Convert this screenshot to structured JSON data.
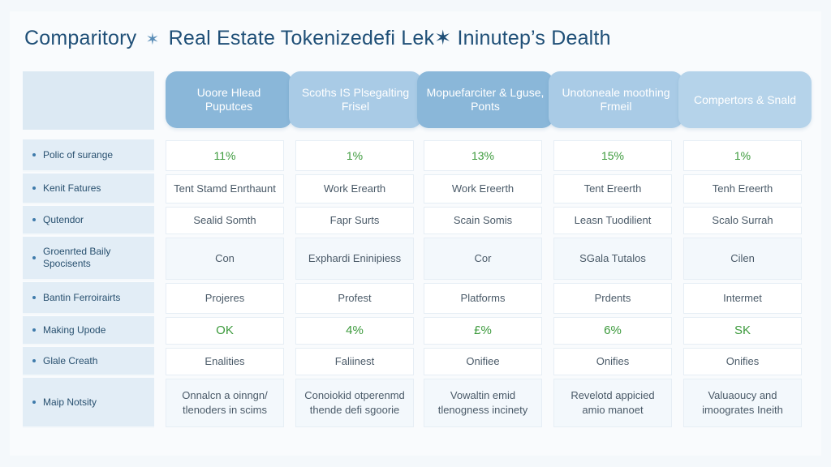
{
  "title": {
    "part1": "Comparitory",
    "star": "✶",
    "part2": "Real Estate Tokenizedefi Lek✶ Ininutep’s Dealth"
  },
  "columns": [
    "Uoore Hlead Puputces",
    "Scoths IS Plsegalting Frisel",
    "Mopuefarciter & Lguse, Ponts",
    "Unotoneale moothing Frmeil",
    "Compertors & Snald"
  ],
  "rows": [
    {
      "label": "Polic of surange",
      "cells": [
        "11%",
        "1%",
        "13%",
        "15%",
        "1%"
      ]
    },
    {
      "label": "Kenit Fatures",
      "cells": [
        "Tent Stamd Enrthaunt",
        "Work Erearth",
        "Work Ereerth",
        "Tent Ereerth",
        "Tenh Ereerth"
      ]
    },
    {
      "label": "Qutendor",
      "cells": [
        "Sealid Somth",
        "Fapr Surts",
        "Scain Somis",
        "Leasn Tuodilient",
        "Scalo Surrah"
      ]
    },
    {
      "label": "Groenrted Baily Spocisents",
      "cells": [
        "Con",
        "Exphardi Eninipiess",
        "Cor",
        "SGala Tutalos",
        "Cilen"
      ]
    },
    {
      "label": "Bantin Ferroirairts",
      "cells": [
        "Projeres",
        "Profest",
        "Platforms",
        "Prdents",
        "Intermet"
      ]
    },
    {
      "label": "Making Upode",
      "cells": [
        "OK",
        "4%",
        "£%",
        "6%",
        "SK"
      ]
    },
    {
      "label": "Glale Creath",
      "cells": [
        "Enalities",
        "Faliinest",
        "Onifiee",
        "Onifies",
        "Onifies"
      ]
    },
    {
      "label": "Maip Notsity",
      "cells": [
        "Onnalcn a oinngn/ tlenoders in scims",
        "Conoiokid otperenmd thende defi sgoorie",
        "Vowaltin emid tlenogness incinety",
        "Revelotd appicied amio manoet",
        "Valuaoucy and imoogrates Ineith"
      ]
    }
  ],
  "colors": {
    "title": "#1f4f77",
    "header_dark": "#8ab7d9",
    "header_light": "#a9cbe6",
    "label_bg": "#e2edf6",
    "percent_text": "#3c9a3c",
    "cell_text": "#4a5a68"
  }
}
